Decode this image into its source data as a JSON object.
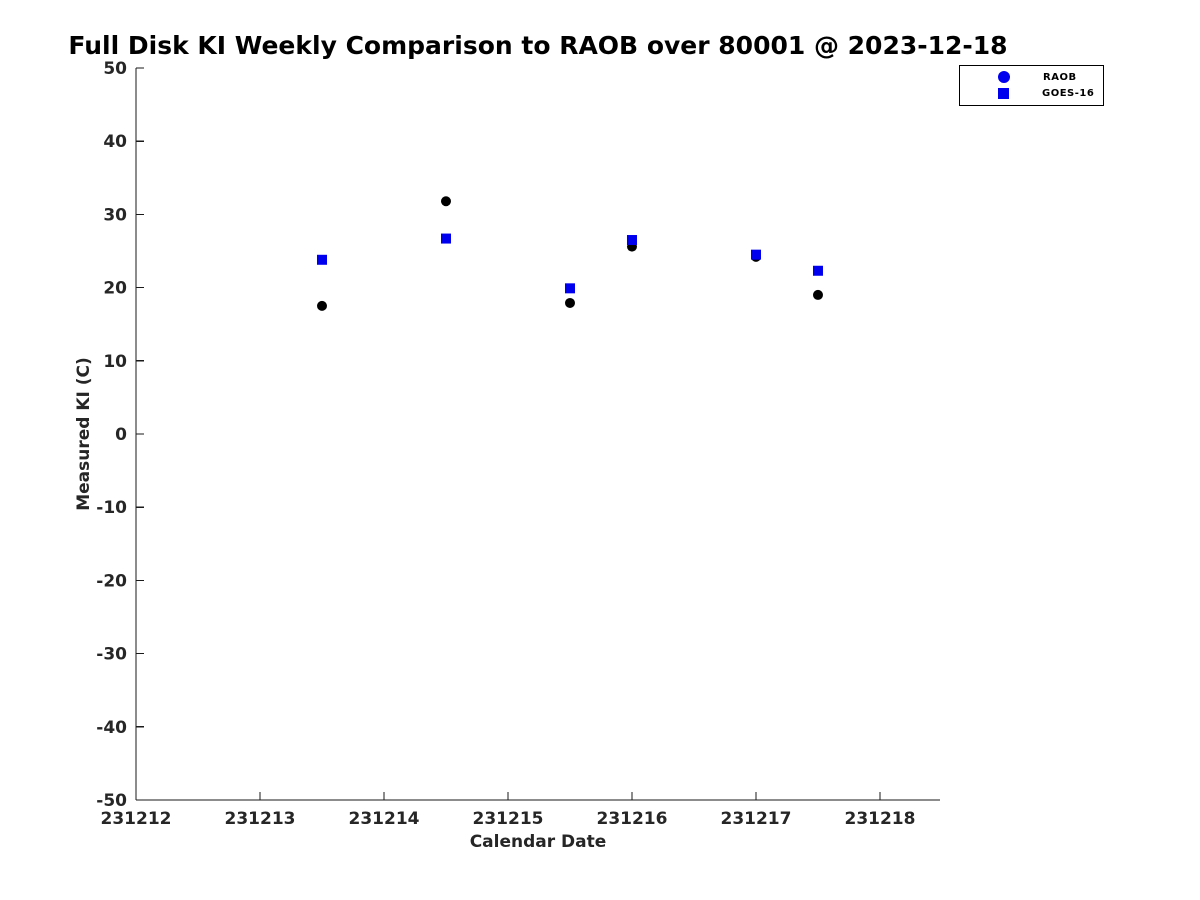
{
  "chart_data": {
    "type": "scatter",
    "title": "Full Disk KI Weekly Comparison to RAOB over 80001 @ 2023-12-18",
    "xlabel": "Calendar Date",
    "ylabel": "Measured KI (C)",
    "xlim": [
      231212,
      231218.484
    ],
    "ylim": [
      -50,
      50
    ],
    "x_ticks": [
      231212,
      231213,
      231214,
      231215,
      231216,
      231217,
      231218
    ],
    "y_ticks": [
      -50,
      -40,
      -30,
      -20,
      -10,
      0,
      10,
      20,
      30,
      40,
      50
    ],
    "grid": false,
    "legend_position": "top-right",
    "axis_color": "#1a1a1a",
    "tick_label_color": "#262626",
    "legend_marker_color": "#0000EE",
    "series": [
      {
        "name": "RAOB",
        "marker": "circle",
        "color": "#000000",
        "points": [
          [
            231213.5,
            17.5
          ],
          [
            231214.5,
            31.8
          ],
          [
            231215.5,
            17.9
          ],
          [
            231216.0,
            25.6
          ],
          [
            231217.0,
            24.2
          ],
          [
            231217.5,
            19.0
          ]
        ]
      },
      {
        "name": "GOES-16",
        "marker": "square",
        "color": "#0000EE",
        "points": [
          [
            231213.5,
            23.8
          ],
          [
            231214.5,
            26.7
          ],
          [
            231215.5,
            19.9
          ],
          [
            231216.0,
            26.5
          ],
          [
            231217.0,
            24.5
          ],
          [
            231217.5,
            22.3
          ]
        ]
      }
    ]
  }
}
